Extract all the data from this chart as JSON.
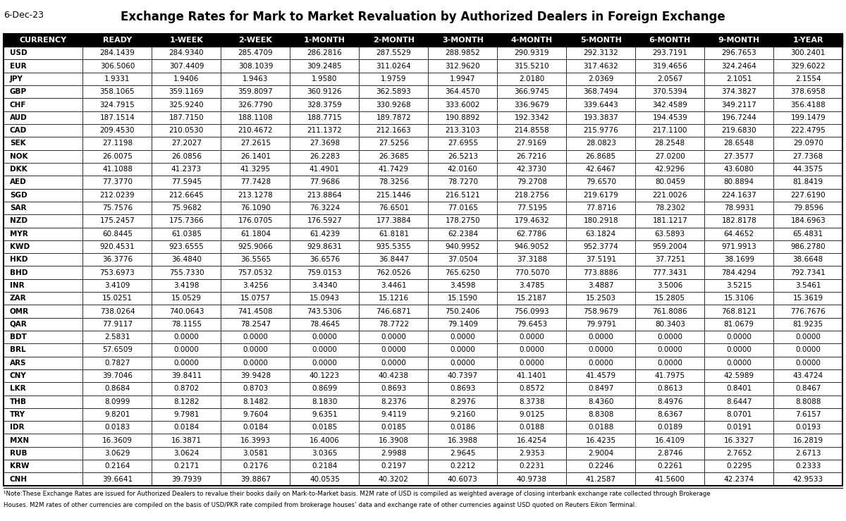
{
  "date": "6-Dec-23",
  "title": "Exchange Rates for Mark to Market Revaluation by Authorized Dealers in Foreign Exchange",
  "columns": [
    "CURRENCY",
    "READY",
    "1-WEEK",
    "2-WEEK",
    "1-MONTH",
    "2-MONTH",
    "3-MONTH",
    "4-MONTH",
    "5-MONTH",
    "6-MONTH",
    "9-MONTH",
    "1-YEAR"
  ],
  "rows": [
    [
      "USD",
      "284.1439",
      "284.9340",
      "285.4709",
      "286.2816",
      "287.5529",
      "288.9852",
      "290.9319",
      "292.3132",
      "293.7191",
      "296.7653",
      "300.2401"
    ],
    [
      "EUR",
      "306.5060",
      "307.4409",
      "308.1039",
      "309.2485",
      "311.0264",
      "312.9620",
      "315.5210",
      "317.4632",
      "319.4656",
      "324.2464",
      "329.6022"
    ],
    [
      "JPY",
      "1.9331",
      "1.9406",
      "1.9463",
      "1.9580",
      "1.9759",
      "1.9947",
      "2.0180",
      "2.0369",
      "2.0567",
      "2.1051",
      "2.1554"
    ],
    [
      "GBP",
      "358.1065",
      "359.1169",
      "359.8097",
      "360.9126",
      "362.5893",
      "364.4570",
      "366.9745",
      "368.7494",
      "370.5394",
      "374.3827",
      "378.6958"
    ],
    [
      "CHF",
      "324.7915",
      "325.9240",
      "326.7790",
      "328.3759",
      "330.9268",
      "333.6002",
      "336.9679",
      "339.6443",
      "342.4589",
      "349.2117",
      "356.4188"
    ],
    [
      "AUD",
      "187.1514",
      "187.7150",
      "188.1108",
      "188.7715",
      "189.7872",
      "190.8892",
      "192.3342",
      "193.3837",
      "194.4539",
      "196.7244",
      "199.1479"
    ],
    [
      "CAD",
      "209.4530",
      "210.0530",
      "210.4672",
      "211.1372",
      "212.1663",
      "213.3103",
      "214.8558",
      "215.9776",
      "217.1100",
      "219.6830",
      "222.4795"
    ],
    [
      "SEK",
      "27.1198",
      "27.2027",
      "27.2615",
      "27.3698",
      "27.5256",
      "27.6955",
      "27.9169",
      "28.0823",
      "28.2548",
      "28.6548",
      "29.0970"
    ],
    [
      "NOK",
      "26.0075",
      "26.0856",
      "26.1401",
      "26.2283",
      "26.3685",
      "26.5213",
      "26.7216",
      "26.8685",
      "27.0200",
      "27.3577",
      "27.7368"
    ],
    [
      "DKK",
      "41.1088",
      "41.2373",
      "41.3295",
      "41.4901",
      "41.7429",
      "42.0160",
      "42.3730",
      "42.6467",
      "42.9296",
      "43.6080",
      "44.3575"
    ],
    [
      "AED",
      "77.3770",
      "77.5945",
      "77.7428",
      "77.9686",
      "78.3256",
      "78.7270",
      "79.2708",
      "79.6570",
      "80.0459",
      "80.8894",
      "81.8419"
    ],
    [
      "SGD",
      "212.0239",
      "212.6645",
      "213.1278",
      "213.8864",
      "215.1446",
      "216.5121",
      "218.2756",
      "219.6179",
      "221.0026",
      "224.1637",
      "227.6190"
    ],
    [
      "SAR",
      "75.7576",
      "75.9682",
      "76.1090",
      "76.3224",
      "76.6501",
      "77.0165",
      "77.5195",
      "77.8716",
      "78.2302",
      "78.9931",
      "79.8596"
    ],
    [
      "NZD",
      "175.2457",
      "175.7366",
      "176.0705",
      "176.5927",
      "177.3884",
      "178.2750",
      "179.4632",
      "180.2918",
      "181.1217",
      "182.8178",
      "184.6963"
    ],
    [
      "MYR",
      "60.8445",
      "61.0385",
      "61.1804",
      "61.4239",
      "61.8181",
      "62.2384",
      "62.7786",
      "63.1824",
      "63.5893",
      "64.4652",
      "65.4831"
    ],
    [
      "KWD",
      "920.4531",
      "923.6555",
      "925.9066",
      "929.8631",
      "935.5355",
      "940.9952",
      "946.9052",
      "952.3774",
      "959.2004",
      "971.9913",
      "986.2780"
    ],
    [
      "HKD",
      "36.3776",
      "36.4840",
      "36.5565",
      "36.6576",
      "36.8447",
      "37.0504",
      "37.3188",
      "37.5191",
      "37.7251",
      "38.1699",
      "38.6648"
    ],
    [
      "BHD",
      "753.6973",
      "755.7330",
      "757.0532",
      "759.0153",
      "762.0526",
      "765.6250",
      "770.5070",
      "773.8886",
      "777.3431",
      "784.4294",
      "792.7341"
    ],
    [
      "INR",
      "3.4109",
      "3.4198",
      "3.4256",
      "3.4340",
      "3.4461",
      "3.4598",
      "3.4785",
      "3.4887",
      "3.5006",
      "3.5215",
      "3.5461"
    ],
    [
      "ZAR",
      "15.0251",
      "15.0529",
      "15.0757",
      "15.0943",
      "15.1216",
      "15.1590",
      "15.2187",
      "15.2503",
      "15.2805",
      "15.3106",
      "15.3619"
    ],
    [
      "OMR",
      "738.0264",
      "740.0643",
      "741.4508",
      "743.5306",
      "746.6871",
      "750.2406",
      "756.0993",
      "758.9679",
      "761.8086",
      "768.8121",
      "776.7676"
    ],
    [
      "QAR",
      "77.9117",
      "78.1155",
      "78.2547",
      "78.4645",
      "78.7722",
      "79.1409",
      "79.6453",
      "79.9791",
      "80.3403",
      "81.0679",
      "81.9235"
    ],
    [
      "BDT",
      "2.5831",
      "0.0000",
      "0.0000",
      "0.0000",
      "0.0000",
      "0.0000",
      "0.0000",
      "0.0000",
      "0.0000",
      "0.0000",
      "0.0000"
    ],
    [
      "BRL",
      "57.6509",
      "0.0000",
      "0.0000",
      "0.0000",
      "0.0000",
      "0.0000",
      "0.0000",
      "0.0000",
      "0.0000",
      "0.0000",
      "0.0000"
    ],
    [
      "ARS",
      "0.7827",
      "0.0000",
      "0.0000",
      "0.0000",
      "0.0000",
      "0.0000",
      "0.0000",
      "0.0000",
      "0.0000",
      "0.0000",
      "0.0000"
    ],
    [
      "CNY",
      "39.7046",
      "39.8411",
      "39.9428",
      "40.1223",
      "40.4238",
      "40.7397",
      "41.1401",
      "41.4579",
      "41.7975",
      "42.5989",
      "43.4724"
    ],
    [
      "LKR",
      "0.8684",
      "0.8702",
      "0.8703",
      "0.8699",
      "0.8693",
      "0.8693",
      "0.8572",
      "0.8497",
      "0.8613",
      "0.8401",
      "0.8467"
    ],
    [
      "THB",
      "8.0999",
      "8.1282",
      "8.1482",
      "8.1830",
      "8.2376",
      "8.2976",
      "8.3738",
      "8.4360",
      "8.4976",
      "8.6447",
      "8.8088"
    ],
    [
      "TRY",
      "9.8201",
      "9.7981",
      "9.7604",
      "9.6351",
      "9.4119",
      "9.2160",
      "9.0125",
      "8.8308",
      "8.6367",
      "8.0701",
      "7.6157"
    ],
    [
      "IDR",
      "0.0183",
      "0.0184",
      "0.0184",
      "0.0185",
      "0.0185",
      "0.0186",
      "0.0188",
      "0.0188",
      "0.0189",
      "0.0191",
      "0.0193"
    ],
    [
      "MXN",
      "16.3609",
      "16.3871",
      "16.3993",
      "16.4006",
      "16.3908",
      "16.3988",
      "16.4254",
      "16.4235",
      "16.4109",
      "16.3327",
      "16.2819"
    ],
    [
      "RUB",
      "3.0629",
      "3.0624",
      "3.0581",
      "3.0365",
      "2.9988",
      "2.9645",
      "2.9353",
      "2.9004",
      "2.8746",
      "2.7652",
      "2.6713"
    ],
    [
      "KRW",
      "0.2164",
      "0.2171",
      "0.2176",
      "0.2184",
      "0.2197",
      "0.2212",
      "0.2231",
      "0.2246",
      "0.2261",
      "0.2295",
      "0.2333"
    ],
    [
      "CNH",
      "39.6641",
      "39.7939",
      "39.8867",
      "40.0535",
      "40.3202",
      "40.6073",
      "40.9738",
      "41.2587",
      "41.5600",
      "42.2374",
      "42.9533"
    ]
  ],
  "footnote_line1": "¹Note:These Exchange Rates are issued for Authorized Dealers to revalue their books daily on Mark-to-Market basis. M2M rate of USD is compiled as weighted average of closing interbank exchange rate collected through Brokerage",
  "footnote_line2": "Houses. M2M rates of other currencies are compiled on the basis of USD/PKR rate compiled from brokerage houses’ data and exchange rate of other currencies against USD quoted on Reuters Eikon Terminal.",
  "header_bg": "#000000",
  "header_fg": "#ffffff",
  "border_color": "#000000",
  "title_fontsize": 12,
  "date_fontsize": 9,
  "header_fontsize": 8,
  "data_fontsize": 7.5,
  "footnote_fontsize": 6.2,
  "raw_col_widths": [
    1.15,
    1.0,
    1.0,
    1.0,
    1.0,
    1.0,
    1.0,
    1.0,
    1.0,
    1.0,
    1.0,
    1.0
  ]
}
